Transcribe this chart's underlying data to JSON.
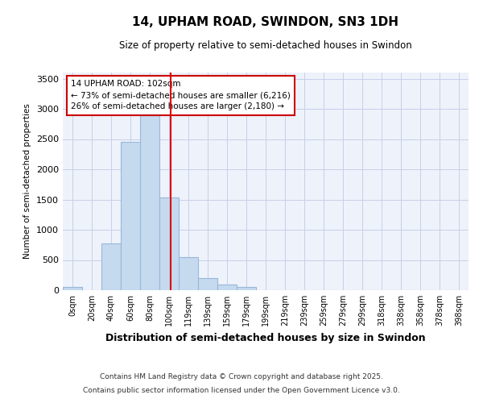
{
  "title": "14, UPHAM ROAD, SWINDON, SN3 1DH",
  "subtitle": "Size of property relative to semi-detached houses in Swindon",
  "xlabel": "Distribution of semi-detached houses by size in Swindon",
  "ylabel": "Number of semi-detached properties",
  "footer1": "Contains HM Land Registry data © Crown copyright and database right 2025.",
  "footer2": "Contains public sector information licensed under the Open Government Licence v3.0.",
  "bar_color": "#c5d9ef",
  "bar_edge_color": "#9ab8d8",
  "background_color": "#eef2fb",
  "grid_color": "#c8cfe8",
  "property_line_color": "#dd0000",
  "annotation_box_color": "#cc0000",
  "categories": [
    "0sqm",
    "20sqm",
    "40sqm",
    "60sqm",
    "80sqm",
    "100sqm",
    "119sqm",
    "139sqm",
    "159sqm",
    "179sqm",
    "199sqm",
    "219sqm",
    "239sqm",
    "259sqm",
    "279sqm",
    "299sqm",
    "318sqm",
    "338sqm",
    "358sqm",
    "378sqm",
    "398sqm"
  ],
  "values": [
    50,
    0,
    780,
    2450,
    2900,
    1530,
    550,
    200,
    90,
    50,
    0,
    0,
    0,
    0,
    0,
    0,
    0,
    0,
    0,
    0,
    0
  ],
  "ylim": [
    0,
    3600
  ],
  "yticks": [
    0,
    500,
    1000,
    1500,
    2000,
    2500,
    3000,
    3500
  ],
  "property_label": "14 UPHAM ROAD: 102sqm",
  "smaller_pct": "73%",
  "smaller_count": "6,216",
  "larger_pct": "26%",
  "larger_count": "2,180",
  "property_line_x": 5.1
}
